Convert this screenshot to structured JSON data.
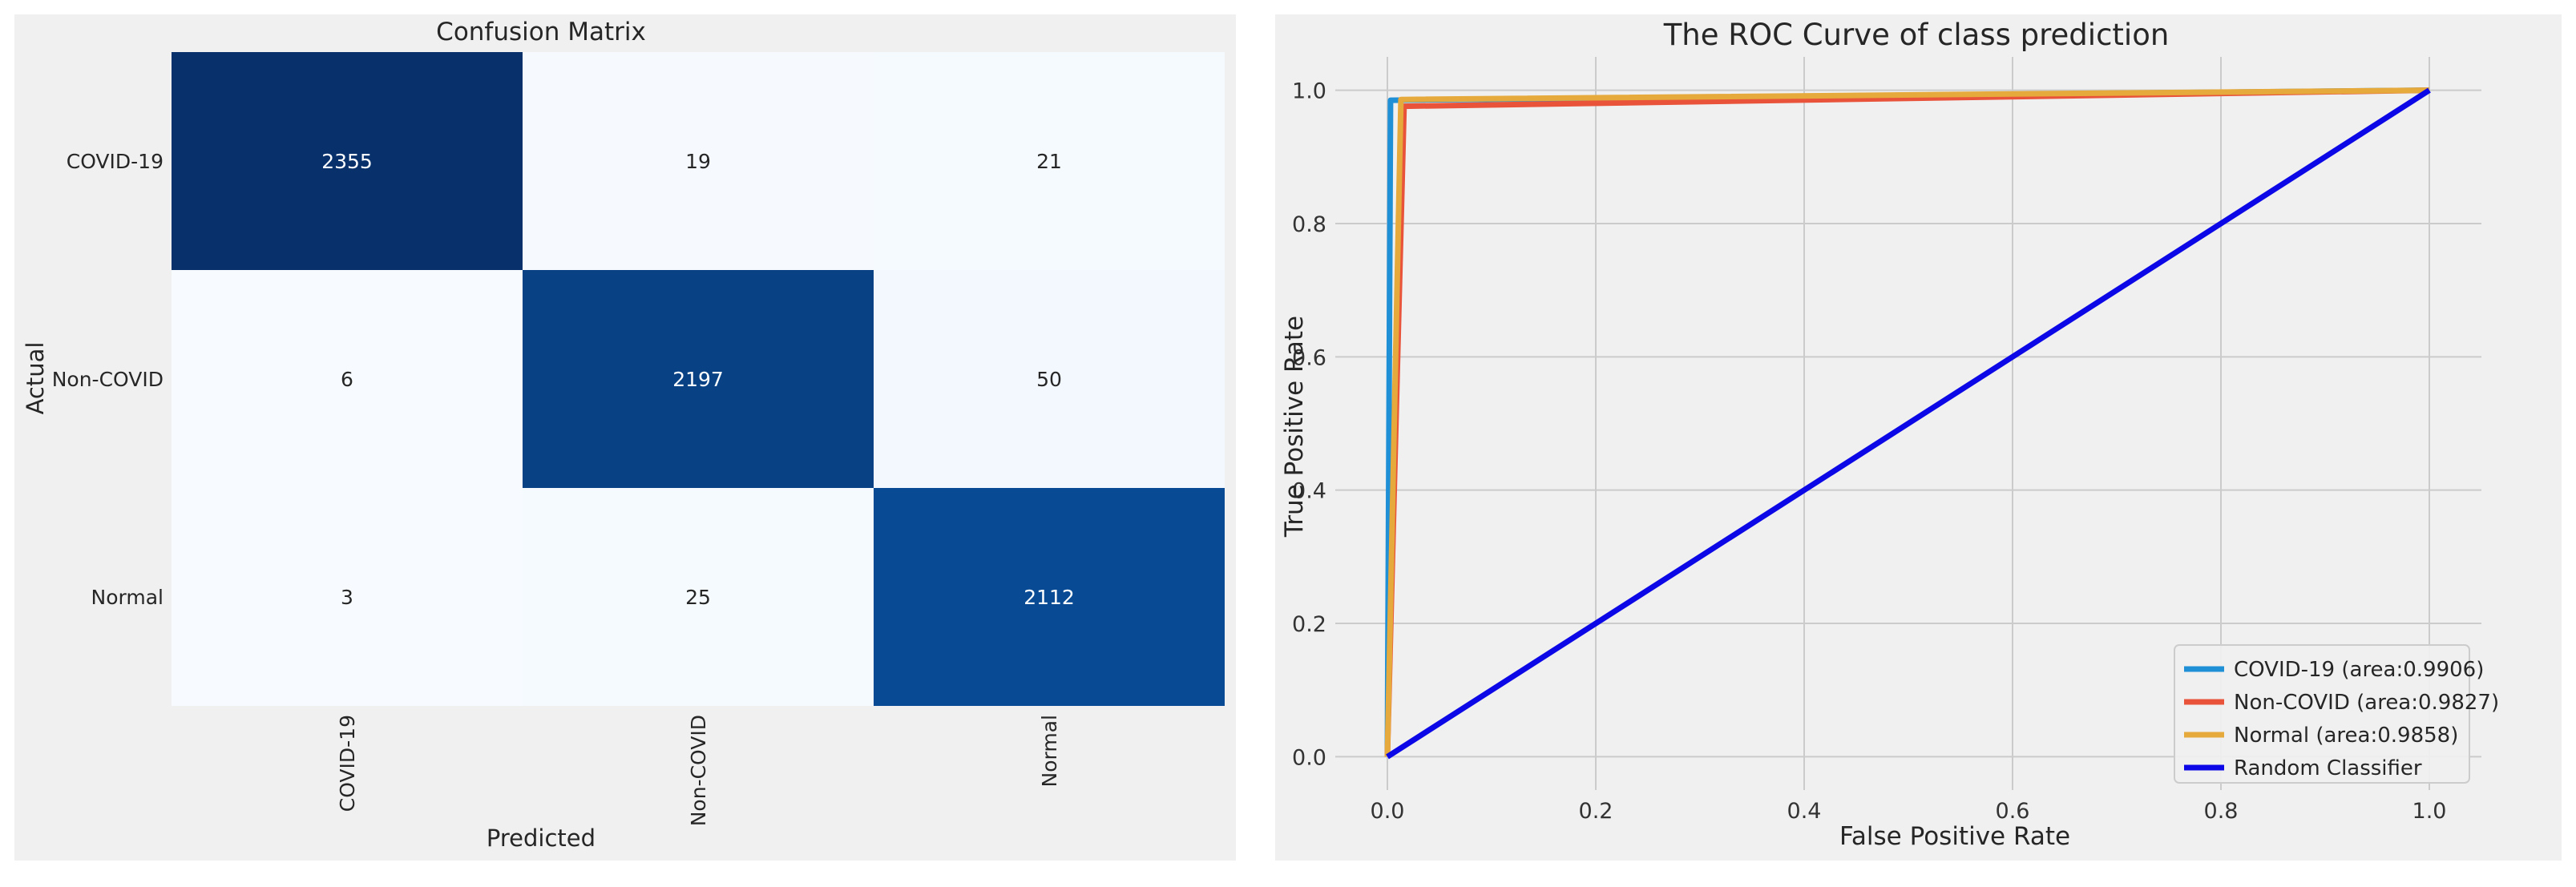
{
  "chart_data": [
    {
      "type": "heatmap",
      "title": "Confusion Matrix",
      "xlabel": "Predicted",
      "ylabel": "Actual",
      "row_labels": [
        "COVID-19",
        "Non-COVID",
        "Normal"
      ],
      "col_labels": [
        "COVID-19",
        "Non-COVID",
        "Normal"
      ],
      "values": [
        [
          2355,
          19,
          21
        ],
        [
          6,
          2197,
          50
        ],
        [
          3,
          25,
          2112
        ]
      ],
      "colormap": "Blues",
      "colorbar": false
    },
    {
      "type": "line",
      "title": "The ROC Curve of class prediction",
      "xlabel": "False Positive Rate",
      "ylabel": "True Positive Rate",
      "xlim": [
        -0.05,
        1.05
      ],
      "ylim": [
        -0.05,
        1.05
      ],
      "xticks": [
        "0.0",
        "0.2",
        "0.4",
        "0.6",
        "0.8",
        "1.0"
      ],
      "yticks": [
        "0.0",
        "0.2",
        "0.4",
        "0.6",
        "0.8",
        "1.0"
      ],
      "grid": true,
      "legend_position": "lower-right",
      "series": [
        {
          "name": "COVID-19 (area:0.9906)",
          "color": "#1f8fd6",
          "x": [
            0,
            0.003,
            1
          ],
          "y": [
            0,
            0.985,
            1
          ]
        },
        {
          "name": "Non-COVID (area:0.9827)",
          "color": "#e8533a",
          "x": [
            0,
            0.016,
            1
          ],
          "y": [
            0,
            0.976,
            1
          ]
        },
        {
          "name": "Normal (area:0.9858)",
          "color": "#e6a93b",
          "x": [
            0,
            0.013,
            1
          ],
          "y": [
            0,
            0.986,
            1
          ]
        },
        {
          "name": "Random Classifier",
          "color": "#0b07e6",
          "x": [
            0,
            1
          ],
          "y": [
            0,
            1
          ]
        }
      ]
    }
  ]
}
